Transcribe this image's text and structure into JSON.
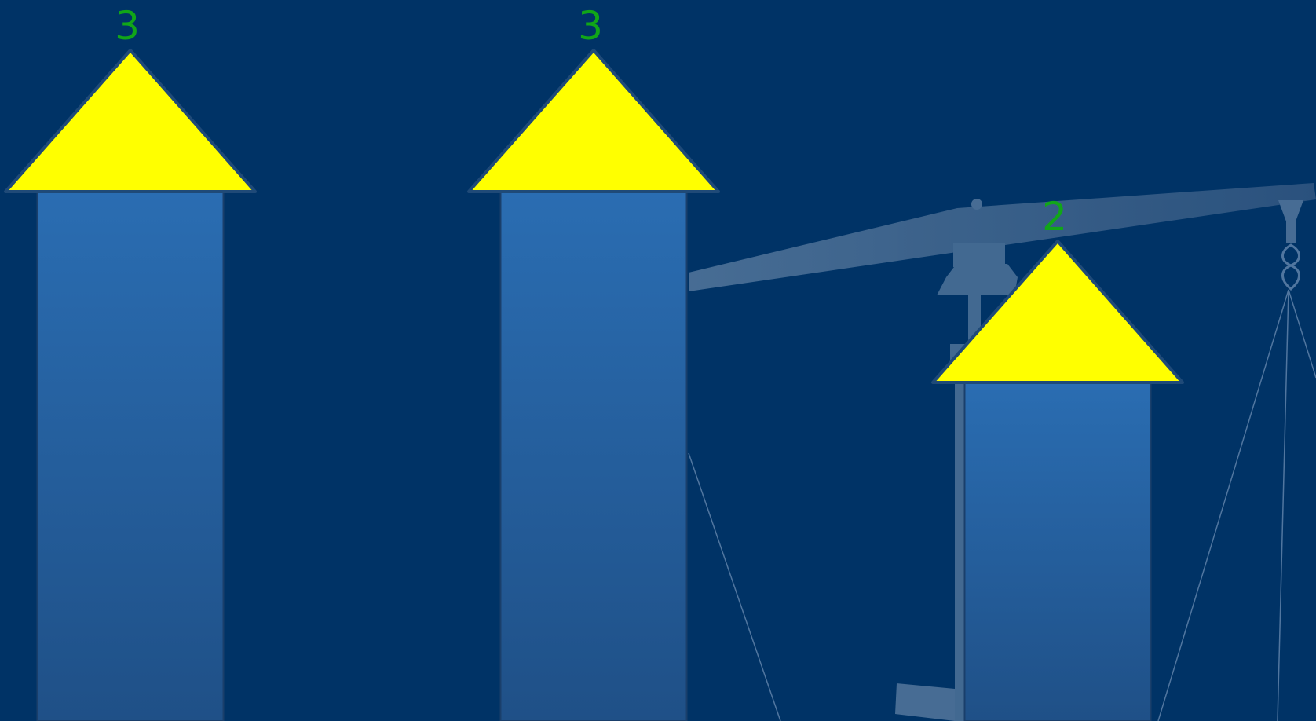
{
  "chart_data": {
    "type": "bar",
    "values": [
      3,
      3,
      2
    ],
    "color": "#ffff00",
    "label_color": "#11a618"
  }
}
